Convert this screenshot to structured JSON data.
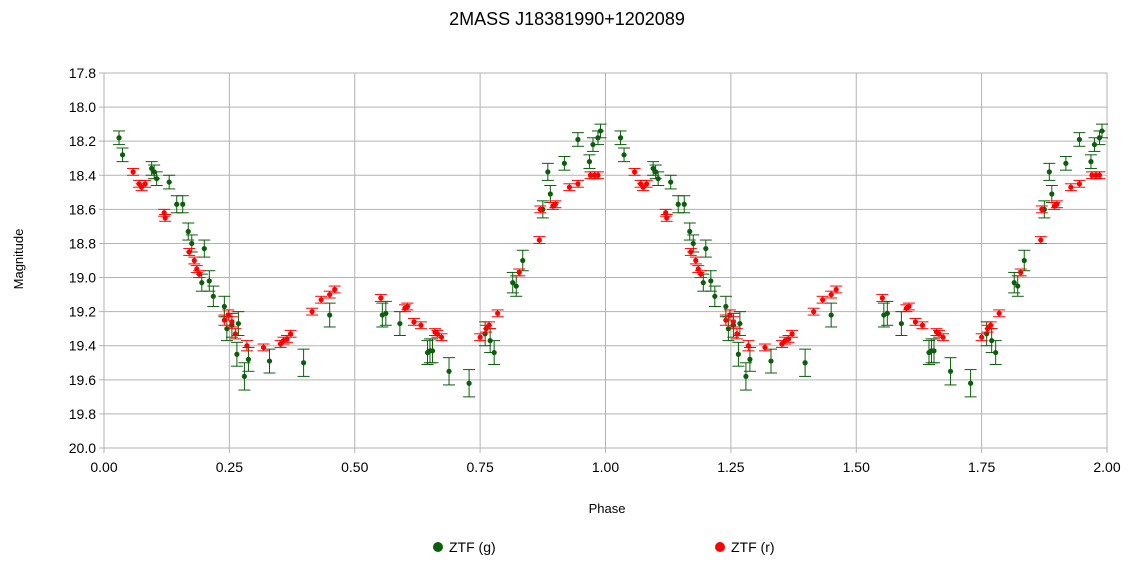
{
  "chart_data": {
    "type": "scatter",
    "title": "2MASS J18381990+1202089",
    "xlabel": "Phase",
    "ylabel": "Magnitude",
    "xlim": [
      0,
      2
    ],
    "ylim": [
      17.8,
      20.0
    ],
    "y_inverted": true,
    "x_ticks": [
      "0.00",
      "0.25",
      "0.50",
      "0.75",
      "1.00",
      "1.25",
      "1.50",
      "1.75",
      "2.00"
    ],
    "y_ticks": [
      "17.8",
      "18.0",
      "18.2",
      "18.4",
      "18.6",
      "18.8",
      "19.0",
      "19.2",
      "19.4",
      "19.6",
      "19.8",
      "20.0"
    ],
    "grid": true,
    "legend_position": "bottom",
    "series": [
      {
        "name": "ZTF (g)",
        "color": "#0b5e0b",
        "points": [
          [
            0.03,
            18.18,
            0.04
          ],
          [
            0.037,
            18.28,
            0.04
          ],
          [
            0.095,
            18.36,
            0.04
          ],
          [
            0.1,
            18.38,
            0.04
          ],
          [
            0.105,
            18.42,
            0.04
          ],
          [
            0.13,
            18.44,
            0.04
          ],
          [
            0.145,
            18.57,
            0.05
          ],
          [
            0.157,
            18.57,
            0.05
          ],
          [
            0.168,
            18.73,
            0.05
          ],
          [
            0.175,
            18.8,
            0.05
          ],
          [
            0.195,
            19.03,
            0.05
          ],
          [
            0.2,
            18.83,
            0.05
          ],
          [
            0.21,
            19.02,
            0.06
          ],
          [
            0.218,
            19.11,
            0.06
          ],
          [
            0.24,
            19.17,
            0.06
          ],
          [
            0.245,
            19.3,
            0.07
          ],
          [
            0.255,
            19.28,
            0.07
          ],
          [
            0.265,
            19.45,
            0.07
          ],
          [
            0.268,
            19.27,
            0.07
          ],
          [
            0.28,
            19.58,
            0.08
          ],
          [
            0.288,
            19.48,
            0.07
          ],
          [
            0.33,
            19.49,
            0.07
          ],
          [
            0.398,
            19.5,
            0.08
          ],
          [
            0.45,
            19.22,
            0.07
          ],
          [
            0.555,
            19.22,
            0.07
          ],
          [
            0.562,
            19.21,
            0.07
          ],
          [
            0.59,
            19.27,
            0.07
          ],
          [
            0.645,
            19.44,
            0.07
          ],
          [
            0.65,
            19.43,
            0.07
          ],
          [
            0.655,
            19.43,
            0.07
          ],
          [
            0.688,
            19.55,
            0.08
          ],
          [
            0.728,
            19.62,
            0.08
          ],
          [
            0.76,
            19.33,
            0.07
          ],
          [
            0.77,
            19.37,
            0.07
          ],
          [
            0.778,
            19.44,
            0.07
          ],
          [
            0.815,
            19.03,
            0.06
          ],
          [
            0.822,
            19.05,
            0.06
          ],
          [
            0.835,
            18.9,
            0.06
          ],
          [
            0.875,
            18.6,
            0.05
          ],
          [
            0.885,
            18.38,
            0.05
          ],
          [
            0.89,
            18.51,
            0.05
          ],
          [
            0.918,
            18.33,
            0.04
          ],
          [
            0.945,
            18.19,
            0.04
          ],
          [
            0.968,
            18.32,
            0.04
          ],
          [
            0.975,
            18.22,
            0.04
          ],
          [
            0.985,
            18.18,
            0.04
          ],
          [
            0.99,
            18.14,
            0.04
          ]
        ]
      },
      {
        "name": "ZTF (r)",
        "color": "#ff0000",
        "points": [
          [
            0.058,
            18.38,
            0.02
          ],
          [
            0.07,
            18.45,
            0.02
          ],
          [
            0.075,
            18.47,
            0.02
          ],
          [
            0.082,
            18.45,
            0.02
          ],
          [
            0.12,
            18.62,
            0.02
          ],
          [
            0.122,
            18.65,
            0.02
          ],
          [
            0.17,
            18.85,
            0.02
          ],
          [
            0.18,
            18.9,
            0.02
          ],
          [
            0.185,
            18.95,
            0.02
          ],
          [
            0.19,
            18.98,
            0.02
          ],
          [
            0.24,
            19.25,
            0.03
          ],
          [
            0.248,
            19.22,
            0.03
          ],
          [
            0.255,
            19.26,
            0.03
          ],
          [
            0.262,
            19.33,
            0.03
          ],
          [
            0.285,
            19.4,
            0.03
          ],
          [
            0.318,
            19.41,
            0.02
          ],
          [
            0.352,
            19.39,
            0.02
          ],
          [
            0.358,
            19.37,
            0.02
          ],
          [
            0.365,
            19.36,
            0.02
          ],
          [
            0.372,
            19.33,
            0.02
          ],
          [
            0.415,
            19.2,
            0.02
          ],
          [
            0.433,
            19.13,
            0.02
          ],
          [
            0.45,
            19.1,
            0.02
          ],
          [
            0.46,
            19.07,
            0.02
          ],
          [
            0.552,
            19.12,
            0.02
          ],
          [
            0.6,
            19.18,
            0.02
          ],
          [
            0.605,
            19.17,
            0.02
          ],
          [
            0.618,
            19.26,
            0.02
          ],
          [
            0.632,
            19.28,
            0.02
          ],
          [
            0.66,
            19.32,
            0.02
          ],
          [
            0.665,
            19.33,
            0.02
          ],
          [
            0.673,
            19.35,
            0.02
          ],
          [
            0.75,
            19.35,
            0.02
          ],
          [
            0.762,
            19.3,
            0.02
          ],
          [
            0.768,
            19.28,
            0.02
          ],
          [
            0.785,
            19.21,
            0.02
          ],
          [
            0.828,
            18.97,
            0.02
          ],
          [
            0.868,
            18.78,
            0.02
          ],
          [
            0.87,
            18.6,
            0.02
          ],
          [
            0.895,
            18.58,
            0.02
          ],
          [
            0.9,
            18.57,
            0.02
          ],
          [
            0.928,
            18.47,
            0.02
          ],
          [
            0.945,
            18.45,
            0.02
          ],
          [
            0.97,
            18.4,
            0.02
          ],
          [
            0.978,
            18.4,
            0.02
          ],
          [
            0.985,
            18.4,
            0.02
          ]
        ]
      }
    ]
  }
}
